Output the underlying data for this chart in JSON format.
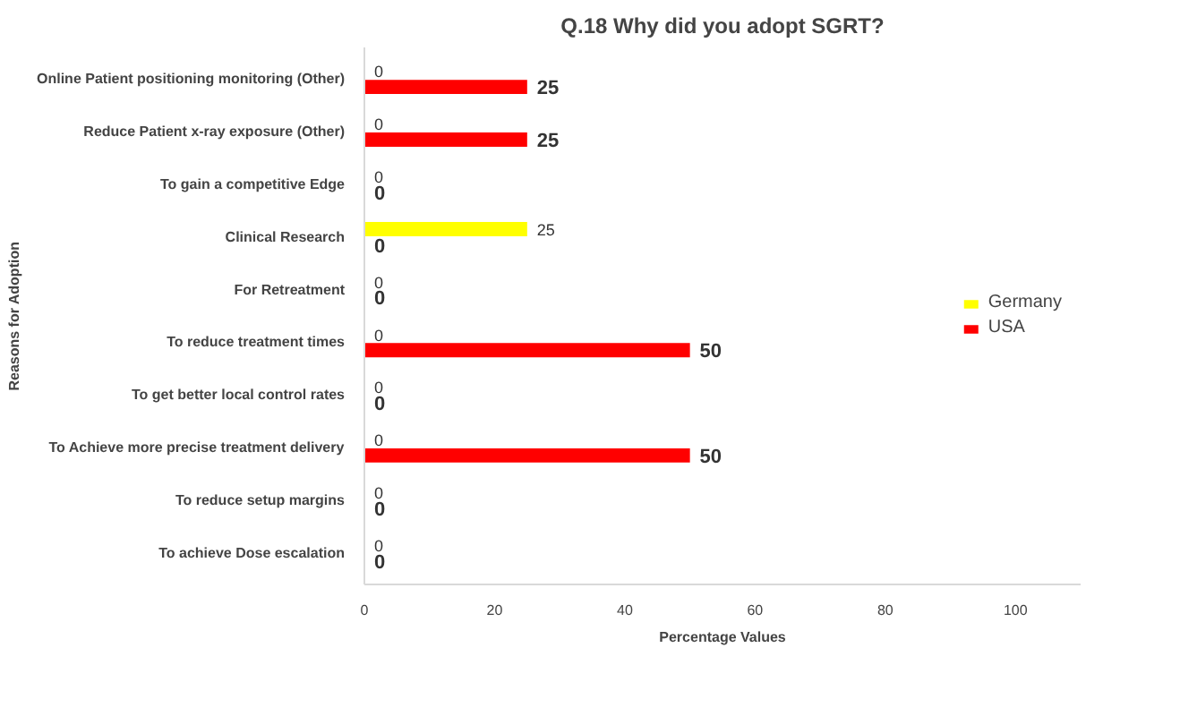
{
  "chart_data": {
    "type": "bar",
    "orientation": "horizontal",
    "title": "Q.18 Why did you adopt SGRT?",
    "xlabel": "Percentage Values",
    "ylabel": "Reasons for Adoption",
    "categories": [
      "Online Patient positioning monitoring (Other)",
      "Reduce Patient x-ray exposure (Other)",
      "To gain a competitive Edge",
      "Clinical Research",
      "For Retreatment",
      "To reduce treatment times",
      "To get better local control rates",
      "To Achieve more precise treatment delivery",
      "To reduce setup margins",
      "To achieve Dose escalation"
    ],
    "series": [
      {
        "name": "Germany",
        "color": "#ffff00",
        "values": [
          0,
          0,
          0,
          25,
          0,
          0,
          0,
          0,
          0,
          0
        ]
      },
      {
        "name": "USA",
        "color": "#ff0000",
        "values": [
          25,
          25,
          0,
          0,
          0,
          50,
          0,
          50,
          0,
          0
        ]
      }
    ],
    "xlim": [
      0,
      110
    ],
    "xticks": [
      0,
      20,
      40,
      60,
      80,
      100
    ],
    "data_labels": true,
    "legend": "right",
    "grid": false
  }
}
